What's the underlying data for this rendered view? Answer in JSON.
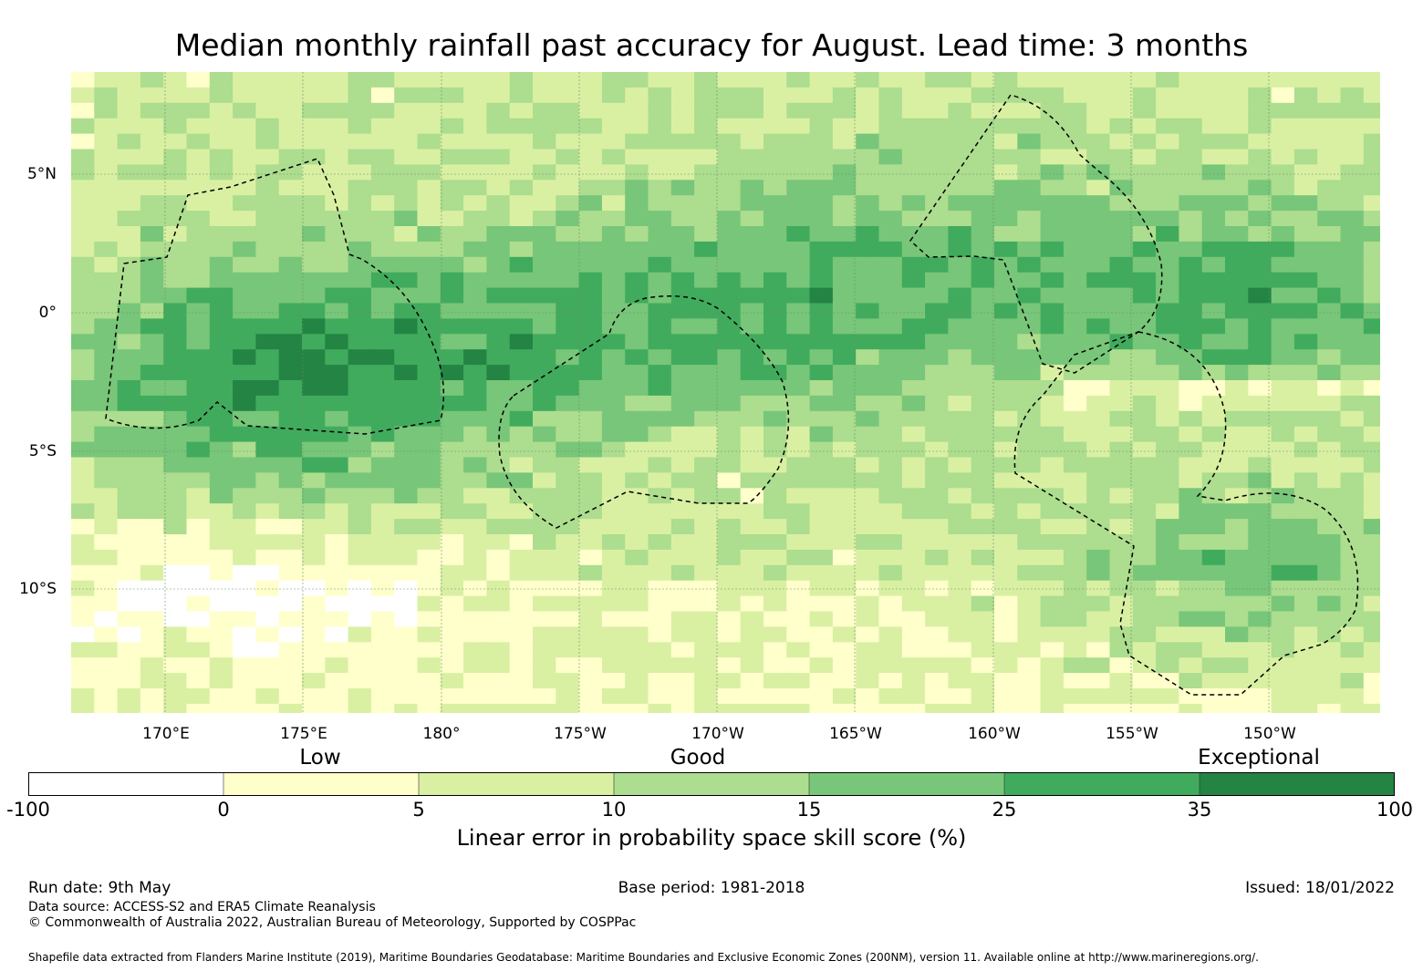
{
  "title": "Median monthly rainfall past accuracy for August. Lead time: 3 months",
  "map": {
    "lat_labels": [
      "5°N",
      "0°",
      "5°S",
      "10°S"
    ],
    "lon_labels": [
      "170°E",
      "175°E",
      "180°",
      "175°W",
      "170°W",
      "165°W",
      "160°W",
      "155°W",
      "150°W"
    ]
  },
  "legend": {
    "qualitative": [
      "Low",
      "Good",
      "Exceptional"
    ],
    "ticks": [
      "-100",
      "0",
      "5",
      "10",
      "15",
      "25",
      "35",
      "100"
    ],
    "colors": [
      "#ffffff",
      "#ffffcc",
      "#d9f0a3",
      "#addd8e",
      "#78c679",
      "#41ab5d",
      "#238443"
    ],
    "label": "Linear error in probability space skill score (%)"
  },
  "footer": {
    "run_date": "Run date: 9th May",
    "base_period": "Base period: 1981-2018",
    "issued": "Issued: 18/01/2022",
    "data_source": "Data source: ACCESS-S2 and ERA5 Climate Reanalysis",
    "copyright": "© Commonwealth of Australia 2022, Australian Bureau of Meteorology, Supported by COSPPac",
    "shapefile": "Shapefile data extracted from Flanders Marine Institute (2019), Maritime Boundaries Geodatabase: Maritime Boundaries and Exclusive Economic Zones (200NM), version 11. Available online at http://www.marineregions.org/."
  }
}
